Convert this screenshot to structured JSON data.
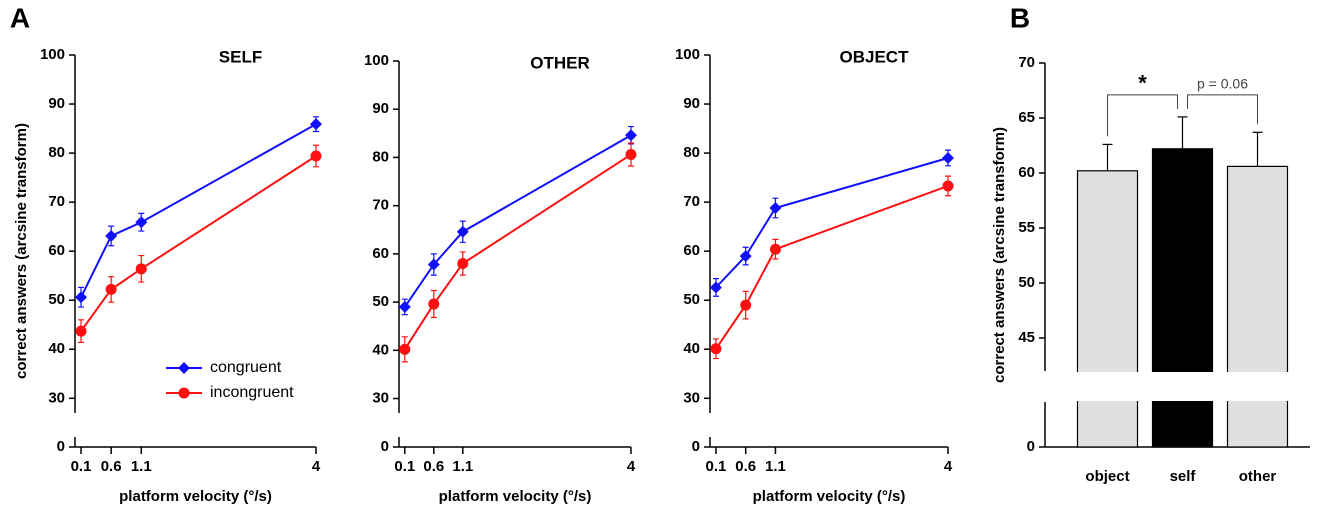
{
  "chart_data": [
    {
      "type": "line",
      "panel": "A",
      "title": "SELF",
      "x_label": "platform velocity (°/s)",
      "y_label": "correct answers (arcsine transform)",
      "x": [
        0.1,
        0.6,
        1.1,
        4
      ],
      "xlim": [
        0,
        4
      ],
      "xticks": [
        0.1,
        0.6,
        1.1,
        4
      ],
      "ylim": [
        0,
        100
      ],
      "y_break": [
        0,
        27
      ],
      "yticks": [
        0,
        30,
        40,
        50,
        60,
        70,
        80,
        90,
        100
      ],
      "error_bars": "both",
      "legend": "lower right",
      "series": [
        {
          "name": "congruent",
          "color": "#1010ff",
          "marker": "diamond",
          "values": [
            50.6,
            63.1,
            65.9,
            85.9
          ],
          "errors": [
            2.0,
            2.0,
            1.8,
            1.5
          ]
        },
        {
          "name": "incongruent",
          "color": "#ff1010",
          "marker": "circle",
          "values": [
            43.7,
            52.2,
            56.4,
            79.4
          ],
          "errors": [
            2.3,
            2.6,
            2.7,
            2.2
          ]
        }
      ]
    },
    {
      "type": "line",
      "title": "OTHER",
      "x_label": "platform velocity (°/s)",
      "x": [
        0.1,
        0.6,
        1.1,
        4
      ],
      "xlim": [
        0,
        4
      ],
      "xticks": [
        0.1,
        0.6,
        1.1,
        4
      ],
      "ylim": [
        0,
        100
      ],
      "y_break": [
        0,
        27
      ],
      "yticks": [
        0,
        30,
        40,
        50,
        60,
        70,
        80,
        90,
        100
      ],
      "error_bars": "both",
      "series": [
        {
          "color": "#1010ff",
          "marker": "diamond",
          "values": [
            49.0,
            57.8,
            64.6,
            84.6
          ],
          "errors": [
            1.6,
            2.2,
            2.2,
            1.8
          ]
        },
        {
          "color": "#ff1010",
          "marker": "circle",
          "values": [
            40.2,
            49.6,
            58.0,
            80.6
          ],
          "errors": [
            2.6,
            2.8,
            2.4,
            2.4
          ]
        }
      ]
    },
    {
      "type": "line",
      "title": "OBJECT",
      "x_label": "platform velocity (°/s)",
      "x": [
        0.1,
        0.6,
        1.1,
        4
      ],
      "xlim": [
        0,
        4
      ],
      "xticks": [
        0.1,
        0.6,
        1.1,
        4
      ],
      "ylim": [
        0,
        100
      ],
      "y_break": [
        0,
        27
      ],
      "yticks": [
        0,
        30,
        40,
        50,
        60,
        70,
        80,
        90,
        100
      ],
      "error_bars": "both",
      "series": [
        {
          "color": "#1010ff",
          "marker": "diamond",
          "values": [
            52.6,
            59.0,
            68.8,
            79.0
          ],
          "errors": [
            1.8,
            1.8,
            2.0,
            1.6
          ]
        },
        {
          "color": "#ff1010",
          "marker": "circle",
          "values": [
            40.1,
            49.0,
            60.4,
            73.3
          ],
          "errors": [
            2.0,
            2.8,
            2.0,
            2.0
          ]
        }
      ]
    },
    {
      "type": "bar",
      "panel": "B",
      "y_label": "correct answers (arcsine transform)",
      "categories": [
        "object",
        "self",
        "other"
      ],
      "values": [
        60.2,
        62.2,
        60.6
      ],
      "errors": [
        2.4,
        2.9,
        3.1
      ],
      "colors": [
        "#e0e0e0",
        "#000000",
        "#e0e0e0"
      ],
      "error_bars": "up",
      "ylim": [
        0,
        70
      ],
      "y_break": [
        0,
        42
      ],
      "yticks": [
        0,
        45,
        50,
        55,
        60,
        65,
        70
      ],
      "annotations": [
        {
          "text": "*",
          "between": [
            0,
            1
          ]
        },
        {
          "text": "p = 0.06",
          "between": [
            1,
            2
          ]
        }
      ]
    }
  ]
}
